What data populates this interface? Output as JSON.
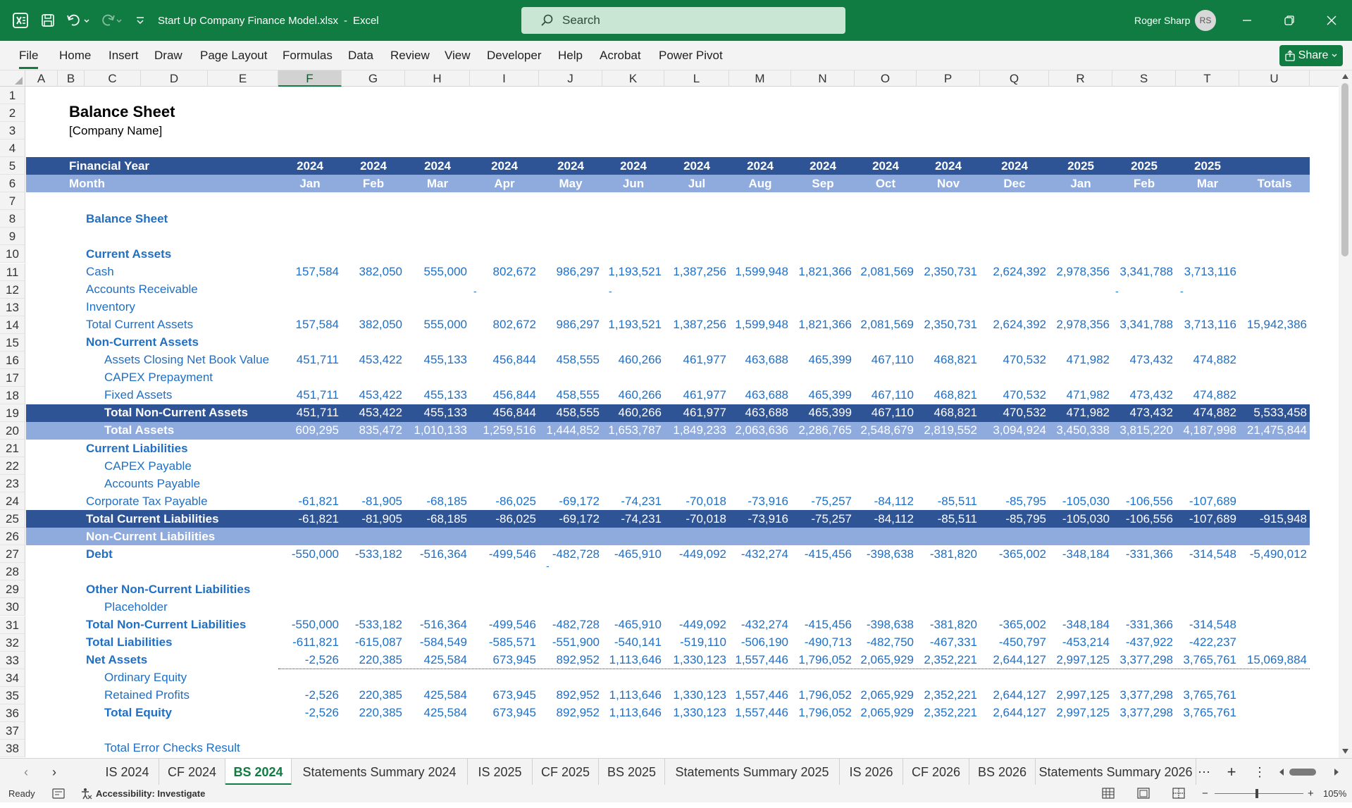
{
  "titlebar": {
    "filename": "Start Up Company Finance Model.xlsx",
    "separator": "-",
    "app": "Excel",
    "search_placeholder": "Search",
    "user_name": "Roger Sharp",
    "user_initials": "RS"
  },
  "menu": {
    "items": [
      "File",
      "Home",
      "Insert",
      "Draw",
      "Page Layout",
      "Formulas",
      "Data",
      "Review",
      "View",
      "Developer",
      "Help",
      "Acrobat",
      "Power Pivot"
    ],
    "share_label": "Share"
  },
  "columns": [
    "A",
    "B",
    "C",
    "D",
    "E",
    "F",
    "G",
    "H",
    "I",
    "J",
    "K",
    "L",
    "M",
    "N",
    "O",
    "P",
    "Q",
    "R",
    "S",
    "T",
    "U"
  ],
  "selected_column": "F",
  "sheet": {
    "title": "Balance Sheet",
    "company": "[Company Name]",
    "fy_label": "Financial Year",
    "years": [
      "2024",
      "2024",
      "2024",
      "2024",
      "2024",
      "2024",
      "2024",
      "2024",
      "2024",
      "2024",
      "2024",
      "2024",
      "2025",
      "2025",
      "2025"
    ],
    "month_label": "Month",
    "months": [
      "Jan",
      "Feb",
      "Mar",
      "Apr",
      "May",
      "Jun",
      "Jul",
      "Aug",
      "Sep",
      "Oct",
      "Nov",
      "Dec",
      "Jan",
      "Feb",
      "Mar"
    ],
    "totals_label": "Totals",
    "rows": [
      {
        "r": "7"
      },
      {
        "r": "8",
        "label": "Balance Sheet",
        "indent": 1,
        "bold": true
      },
      {
        "r": "9"
      },
      {
        "r": "10",
        "label": "Current Assets",
        "indent": 1,
        "bold": true
      },
      {
        "r": "11",
        "label": "Cash",
        "indent": 1,
        "values": [
          "157,584",
          "382,050",
          "555,000",
          "802,672",
          "986,297",
          "1,193,521",
          "1,387,256",
          "1,599,948",
          "1,821,366",
          "2,081,569",
          "2,350,731",
          "2,624,392",
          "2,978,356",
          "3,341,788",
          "3,713,116"
        ],
        "total": ""
      },
      {
        "r": "12",
        "label": "Accounts Receivable",
        "indent": 1
      },
      {
        "r": "13",
        "label": "Inventory",
        "indent": 1
      },
      {
        "r": "14",
        "label": "Total Current Assets",
        "indent": 1,
        "values": [
          "157,584",
          "382,050",
          "555,000",
          "802,672",
          "986,297",
          "1,193,521",
          "1,387,256",
          "1,599,948",
          "1,821,366",
          "2,081,569",
          "2,350,731",
          "2,624,392",
          "2,978,356",
          "3,341,788",
          "3,713,116"
        ],
        "total": "15,942,386"
      },
      {
        "r": "15",
        "label": "Non-Current Assets",
        "indent": 1,
        "bold": true
      },
      {
        "r": "16",
        "label": "Assets Closing Net Book Value",
        "indent": 2,
        "values": [
          "451,711",
          "453,422",
          "455,133",
          "456,844",
          "458,555",
          "460,266",
          "461,977",
          "463,688",
          "465,399",
          "467,110",
          "468,821",
          "470,532",
          "471,982",
          "473,432",
          "474,882"
        ],
        "total": ""
      },
      {
        "r": "17",
        "label": "CAPEX Prepayment",
        "indent": 2
      },
      {
        "r": "18",
        "label": "Fixed Assets",
        "indent": 2,
        "values": [
          "451,711",
          "453,422",
          "455,133",
          "456,844",
          "458,555",
          "460,266",
          "461,977",
          "463,688",
          "465,399",
          "467,110",
          "468,821",
          "470,532",
          "471,982",
          "473,432",
          "474,882"
        ],
        "total": ""
      },
      {
        "r": "19",
        "label": "Total Non-Current Assets",
        "indent": 2,
        "bold": true,
        "band": "dark",
        "values": [
          "451,711",
          "453,422",
          "455,133",
          "456,844",
          "458,555",
          "460,266",
          "461,977",
          "463,688",
          "465,399",
          "467,110",
          "468,821",
          "470,532",
          "471,982",
          "473,432",
          "474,882"
        ],
        "total": "5,533,458"
      },
      {
        "r": "20",
        "label": "Total Assets",
        "indent": 2,
        "bold": true,
        "band": "light",
        "values": [
          "609,295",
          "835,472",
          "1,010,133",
          "1,259,516",
          "1,444,852",
          "1,653,787",
          "1,849,233",
          "2,063,636",
          "2,286,765",
          "2,548,679",
          "2,819,552",
          "3,094,924",
          "3,450,338",
          "3,815,220",
          "4,187,998"
        ],
        "total": "21,475,844"
      },
      {
        "r": "21",
        "label": "Current Liabilities",
        "indent": 1,
        "bold": true
      },
      {
        "r": "22",
        "label": "CAPEX Payable",
        "indent": 2
      },
      {
        "r": "23",
        "label": "Accounts Payable",
        "indent": 2
      },
      {
        "r": "24",
        "label": "Corporate Tax Payable",
        "indent": 1,
        "values": [
          "-61,821",
          "-81,905",
          "-68,185",
          "-86,025",
          "-69,172",
          "-74,231",
          "-70,018",
          "-73,916",
          "-75,257",
          "-84,112",
          "-85,511",
          "-85,795",
          "-105,030",
          "-106,556",
          "-107,689"
        ],
        "total": ""
      },
      {
        "r": "25",
        "label": "Total Current Liabilities",
        "indent": 1,
        "bold": true,
        "band": "dark",
        "values": [
          "-61,821",
          "-81,905",
          "-68,185",
          "-86,025",
          "-69,172",
          "-74,231",
          "-70,018",
          "-73,916",
          "-75,257",
          "-84,112",
          "-85,511",
          "-85,795",
          "-105,030",
          "-106,556",
          "-107,689"
        ],
        "total": "-915,948"
      },
      {
        "r": "26",
        "label": "Non-Current Liabilities",
        "indent": 1,
        "bold": true,
        "band": "light"
      },
      {
        "r": "27",
        "label": "Debt",
        "indent": 1,
        "bold": true,
        "values": [
          "-550,000",
          "-533,182",
          "-516,364",
          "-499,546",
          "-482,728",
          "-465,910",
          "-449,092",
          "-432,274",
          "-415,456",
          "-398,638",
          "-381,820",
          "-365,002",
          "-348,184",
          "-331,366",
          "-314,548"
        ],
        "total": "-5,490,012"
      },
      {
        "r": "28"
      },
      {
        "r": "29",
        "label": "Other Non-Current Liabilities",
        "indent": 1,
        "bold": true
      },
      {
        "r": "30",
        "label": "Placeholder",
        "indent": 2
      },
      {
        "r": "31",
        "label": "Total Non-Current Liabilities",
        "indent": 1,
        "bold": true,
        "values": [
          "-550,000",
          "-533,182",
          "-516,364",
          "-499,546",
          "-482,728",
          "-465,910",
          "-449,092",
          "-432,274",
          "-415,456",
          "-398,638",
          "-381,820",
          "-365,002",
          "-348,184",
          "-331,366",
          "-314,548"
        ],
        "total": ""
      },
      {
        "r": "32",
        "label": "Total Liabilities",
        "indent": 1,
        "bold": true,
        "values": [
          "-611,821",
          "-615,087",
          "-584,549",
          "-585,571",
          "-551,900",
          "-540,141",
          "-519,110",
          "-506,190",
          "-490,713",
          "-482,750",
          "-467,331",
          "-450,797",
          "-453,214",
          "-437,922",
          "-422,237"
        ],
        "total": ""
      },
      {
        "r": "33",
        "label": "Net Assets",
        "indent": 1,
        "bold": true,
        "dotted": true,
        "values": [
          "-2,526",
          "220,385",
          "425,584",
          "673,945",
          "892,952",
          "1,113,646",
          "1,330,123",
          "1,557,446",
          "1,796,052",
          "2,065,929",
          "2,352,221",
          "2,644,127",
          "2,997,125",
          "3,377,298",
          "3,765,761"
        ],
        "total": "15,069,884"
      },
      {
        "r": "34",
        "label": "Ordinary Equity",
        "indent": 2
      },
      {
        "r": "35",
        "label": "Retained Profits",
        "indent": 2,
        "values": [
          "-2,526",
          "220,385",
          "425,584",
          "673,945",
          "892,952",
          "1,113,646",
          "1,330,123",
          "1,557,446",
          "1,796,052",
          "2,065,929",
          "2,352,221",
          "2,644,127",
          "2,997,125",
          "3,377,298",
          "3,765,761"
        ],
        "total": ""
      },
      {
        "r": "36",
        "label": "Total Equity",
        "indent": 2,
        "bold": true,
        "values": [
          "-2,526",
          "220,385",
          "425,584",
          "673,945",
          "892,952",
          "1,113,646",
          "1,330,123",
          "1,557,446",
          "1,796,052",
          "2,065,929",
          "2,352,221",
          "2,644,127",
          "2,997,125",
          "3,377,298",
          "3,765,761"
        ],
        "total": ""
      },
      {
        "r": "37"
      },
      {
        "r": "38",
        "label": "Total Error Checks Result",
        "indent": 2
      }
    ],
    "stray_dash": "-"
  },
  "tabs": [
    "IS 2024",
    "CF 2024",
    "BS 2024",
    "Statements Summary 2024",
    "IS 2025",
    "CF 2025",
    "BS 2025",
    "Statements Summary 2025",
    "IS 2026",
    "CF 2026",
    "BS 2026",
    "Statements Summary 2026"
  ],
  "active_tab": "BS 2024",
  "status": {
    "ready": "Ready",
    "accessibility": "Accessibility: Investigate",
    "zoom": "105%",
    "zoom_minus": "−",
    "zoom_plus": "+"
  },
  "colors": {
    "excel_green": "#107c41",
    "band_dark": "#2f5496",
    "band_light": "#8faadc",
    "text_blue": "#1f6fc5"
  }
}
